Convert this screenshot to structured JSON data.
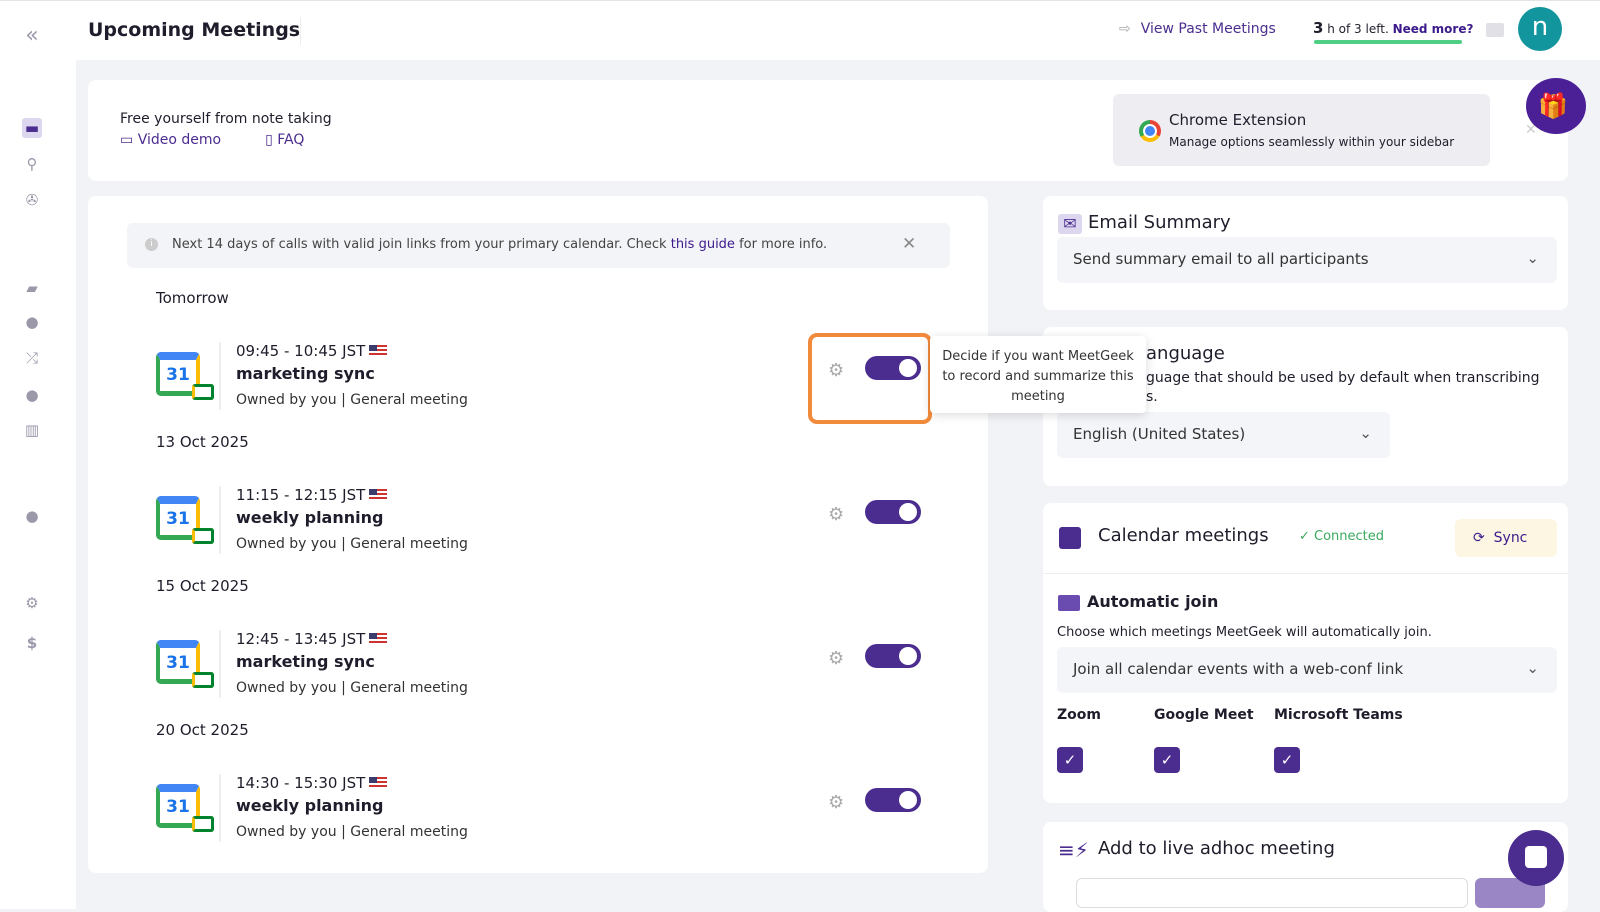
{
  "header": {
    "title": "Upcoming Meetings",
    "past_label": "View Past Meetings",
    "credits_num": "3",
    "credits_text": " h of 3 left. ",
    "need_more": "Need more?",
    "credits_fraction": 1.0,
    "avatar_letter": "n"
  },
  "banner": {
    "title": "Free yourself from note taking",
    "video": "Video demo",
    "faq": "FAQ",
    "ext_title": "Chrome Extension",
    "ext_sub": "Manage options seamlessly within your sidebar"
  },
  "info": {
    "text": "Next 14 days of calls with valid join links from your primary calendar. Check ",
    "link": "this guide",
    "tail": " for more info."
  },
  "groups": [
    {
      "date": "Tomorrow",
      "time": "09:45 - 10:45 JST",
      "name": "marketing sync",
      "owner": "Owned by you | General meeting",
      "enabled": true
    },
    {
      "date": "13 Oct 2025",
      "time": "11:15 - 12:15 JST",
      "name": "weekly planning",
      "owner": "Owned by you | General meeting",
      "enabled": true
    },
    {
      "date": "15 Oct 2025",
      "time": "12:45 - 13:45 JST",
      "name": "marketing sync",
      "owner": "Owned by you | General meeting",
      "enabled": true
    },
    {
      "date": "20 Oct 2025",
      "time": "14:30 - 15:30 JST",
      "name": "weekly planning",
      "owner": "Owned by you | General meeting",
      "enabled": true
    }
  ],
  "cal_day": "31",
  "tooltip": "Decide if you want MeetGeek to record and summarize this meeting",
  "email": {
    "title": "Email Summary",
    "value": "Send summary email to all participants"
  },
  "language": {
    "title": "anguage",
    "desc": "guage that should be used by default when transcribing",
    "desc2": "s.",
    "value": "English (United States)"
  },
  "calendar": {
    "title": "Calendar meetings",
    "status": "Connected",
    "sync": "Sync",
    "auto_title": "Automatic join",
    "auto_desc": "Choose which meetings MeetGeek will automatically join.",
    "value": "Join all calendar events with a web-conf link",
    "platforms": [
      {
        "name": "Zoom",
        "checked": true
      },
      {
        "name": "Google Meet",
        "checked": true
      },
      {
        "name": "Microsoft Teams",
        "checked": true
      }
    ]
  },
  "adhoc": {
    "title": "Add to live adhoc meeting"
  },
  "colors": {
    "accent": "#4b2d8f",
    "progress": "#4fcf83",
    "highlight": "#f28a3b",
    "avatar": "#12959c"
  }
}
